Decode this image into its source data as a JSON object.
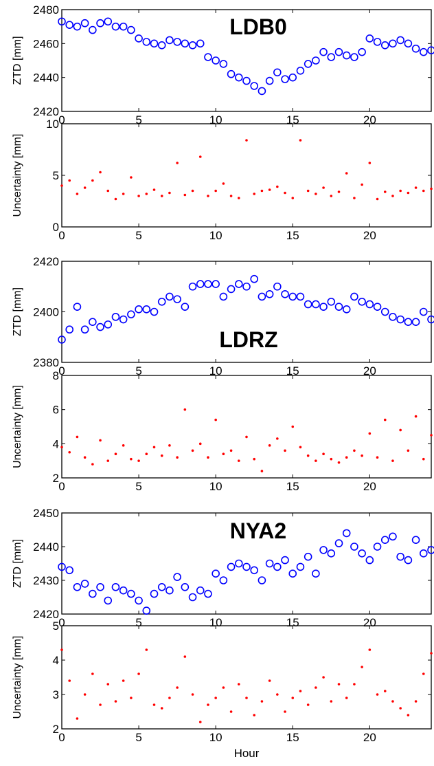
{
  "figure": {
    "xlabel": "Hour"
  },
  "chart_data": [
    {
      "type": "scatter",
      "title": "LDB0",
      "xlabel": "",
      "ylabel": "ZTD [mm]",
      "xlim": [
        0,
        24
      ],
      "ylim": [
        2420,
        2480
      ],
      "xticks": [
        0,
        5,
        10,
        15,
        20
      ],
      "yticks": [
        2420,
        2440,
        2460,
        2480
      ],
      "marker": "circle",
      "color": "#0000ff",
      "x": [
        0,
        0.5,
        1,
        1.5,
        2,
        2.5,
        3,
        3.5,
        4,
        4.5,
        5,
        5.5,
        6,
        6.5,
        7,
        7.5,
        8,
        8.5,
        9,
        9.5,
        10,
        10.5,
        11,
        11.5,
        12,
        12.5,
        13,
        13.5,
        14,
        14.5,
        15,
        15.5,
        16,
        16.5,
        17,
        17.5,
        18,
        18.5,
        19,
        19.5,
        20,
        20.5,
        21,
        21.5,
        22,
        22.5,
        23,
        23.5,
        24
      ],
      "y": [
        2473,
        2471,
        2470,
        2472,
        2468,
        2472,
        2473,
        2470,
        2470,
        2468,
        2463,
        2461,
        2460,
        2459,
        2462,
        2461,
        2460,
        2459,
        2460,
        2452,
        2450,
        2448,
        2442,
        2440,
        2438,
        2435,
        2432,
        2438,
        2443,
        2439,
        2440,
        2444,
        2448,
        2450,
        2455,
        2452,
        2455,
        2453,
        2452,
        2455,
        2463,
        2461,
        2459,
        2460,
        2462,
        2460,
        2457,
        2455,
        2456
      ]
    },
    {
      "type": "scatter",
      "title": "",
      "xlabel": "",
      "ylabel": "Uncertainty [mm]",
      "xlim": [
        0,
        24
      ],
      "ylim": [
        0,
        10
      ],
      "xticks": [
        0,
        5,
        10,
        15,
        20
      ],
      "yticks": [
        0,
        5,
        10
      ],
      "marker": "dot",
      "color": "#ff0000",
      "x": [
        0,
        0.5,
        1,
        1.5,
        2,
        2.5,
        3,
        3.5,
        4,
        4.5,
        5,
        5.5,
        6,
        6.5,
        7,
        7.5,
        8,
        8.5,
        9,
        9.5,
        10,
        10.5,
        11,
        11.5,
        12,
        12.5,
        13,
        13.5,
        14,
        14.5,
        15,
        15.5,
        16,
        16.5,
        17,
        17.5,
        18,
        18.5,
        19,
        19.5,
        20,
        20.5,
        21,
        21.5,
        22,
        22.5,
        23,
        23.5,
        24
      ],
      "y": [
        4.0,
        4.5,
        3.2,
        3.8,
        4.5,
        5.3,
        3.5,
        2.7,
        3.2,
        4.8,
        3.0,
        3.2,
        3.6,
        3.0,
        3.3,
        6.2,
        3.1,
        3.5,
        6.8,
        3.0,
        3.5,
        4.2,
        3.0,
        2.8,
        8.4,
        3.2,
        3.5,
        3.6,
        3.9,
        3.3,
        2.8,
        8.4,
        3.5,
        3.2,
        3.8,
        3.0,
        3.4,
        5.2,
        2.8,
        4.1,
        6.2,
        2.7,
        3.4,
        3.0,
        3.5,
        3.3,
        3.8,
        3.5,
        3.7
      ]
    },
    {
      "type": "scatter",
      "title": "LDRZ",
      "xlabel": "",
      "ylabel": "ZTD [mm]",
      "xlim": [
        0,
        24
      ],
      "ylim": [
        2380,
        2420
      ],
      "xticks": [
        0,
        5,
        10,
        15,
        20
      ],
      "yticks": [
        2380,
        2400,
        2420
      ],
      "marker": "circle",
      "color": "#0000ff",
      "x": [
        0,
        0.5,
        1,
        1.5,
        2,
        2.5,
        3,
        3.5,
        4,
        4.5,
        5,
        5.5,
        6,
        6.5,
        7,
        7.5,
        8,
        8.5,
        9,
        9.5,
        10,
        10.5,
        11,
        11.5,
        12,
        12.5,
        13,
        13.5,
        14,
        14.5,
        15,
        15.5,
        16,
        16.5,
        17,
        17.5,
        18,
        18.5,
        19,
        19.5,
        20,
        20.5,
        21,
        21.5,
        22,
        22.5,
        23,
        23.5,
        24
      ],
      "y": [
        2389,
        2393,
        2402,
        2393,
        2396,
        2394,
        2395,
        2398,
        2397,
        2399,
        2401,
        2401,
        2400,
        2404,
        2406,
        2405,
        2402,
        2410,
        2411,
        2411,
        2411,
        2406,
        2409,
        2411,
        2410,
        2413,
        2406,
        2407,
        2410,
        2407,
        2406,
        2406,
        2403,
        2403,
        2402,
        2404,
        2402,
        2401,
        2406,
        2404,
        2403,
        2402,
        2400,
        2398,
        2397,
        2396,
        2396,
        2400,
        2397
      ]
    },
    {
      "type": "scatter",
      "title": "",
      "xlabel": "",
      "ylabel": "Uncertainty [mm]",
      "xlim": [
        0,
        24
      ],
      "ylim": [
        2,
        8
      ],
      "xticks": [
        0,
        5,
        10,
        15,
        20
      ],
      "yticks": [
        2,
        4,
        6,
        8
      ],
      "marker": "dot",
      "color": "#ff0000",
      "x": [
        0,
        0.5,
        1,
        1.5,
        2,
        2.5,
        3,
        3.5,
        4,
        4.5,
        5,
        5.5,
        6,
        6.5,
        7,
        7.5,
        8,
        8.5,
        9,
        9.5,
        10,
        10.5,
        11,
        11.5,
        12,
        12.5,
        13,
        13.5,
        14,
        14.5,
        15,
        15.5,
        16,
        16.5,
        17,
        17.5,
        18,
        18.5,
        19,
        19.5,
        20,
        20.5,
        21,
        21.5,
        22,
        22.5,
        23,
        23.5,
        24
      ],
      "y": [
        3.8,
        3.5,
        4.4,
        3.2,
        2.8,
        4.2,
        3.0,
        3.4,
        3.9,
        3.1,
        3.0,
        3.4,
        3.8,
        3.3,
        3.9,
        3.2,
        6.0,
        3.6,
        4.0,
        3.2,
        5.4,
        3.4,
        3.6,
        3.0,
        4.4,
        3.1,
        2.4,
        3.9,
        4.3,
        3.6,
        5.0,
        3.8,
        3.3,
        3.0,
        3.4,
        3.1,
        2.9,
        3.2,
        3.6,
        3.3,
        4.6,
        3.2,
        5.4,
        3.0,
        4.8,
        3.6,
        5.6,
        3.1,
        4.5
      ]
    },
    {
      "type": "scatter",
      "title": "NYA2",
      "xlabel": "",
      "ylabel": "ZTD [mm]",
      "xlim": [
        0,
        24
      ],
      "ylim": [
        2420,
        2450
      ],
      "xticks": [
        0,
        5,
        10,
        15,
        20
      ],
      "yticks": [
        2420,
        2430,
        2440,
        2450
      ],
      "marker": "circle",
      "color": "#0000ff",
      "x": [
        0,
        0.5,
        1,
        1.5,
        2,
        2.5,
        3,
        3.5,
        4,
        4.5,
        5,
        5.5,
        6,
        6.5,
        7,
        7.5,
        8,
        8.5,
        9,
        9.5,
        10,
        10.5,
        11,
        11.5,
        12,
        12.5,
        13,
        13.5,
        14,
        14.5,
        15,
        15.5,
        16,
        16.5,
        17,
        17.5,
        18,
        18.5,
        19,
        19.5,
        20,
        20.5,
        21,
        21.5,
        22,
        22.5,
        23,
        23.5,
        24
      ],
      "y": [
        2434,
        2433,
        2428,
        2429,
        2426,
        2428,
        2424,
        2428,
        2427,
        2426,
        2424,
        2421,
        2426,
        2428,
        2427,
        2431,
        2428,
        2425,
        2427,
        2426,
        2432,
        2430,
        2434,
        2435,
        2434,
        2433,
        2430,
        2435,
        2434,
        2436,
        2432,
        2434,
        2437,
        2432,
        2439,
        2438,
        2441,
        2444,
        2440,
        2438,
        2436,
        2440,
        2442,
        2443,
        2437,
        2436,
        2442,
        2438,
        2439
      ]
    },
    {
      "type": "scatter",
      "title": "",
      "xlabel": "Hour",
      "ylabel": "Uncertainty [mm]",
      "xlim": [
        0,
        24
      ],
      "ylim": [
        2,
        5
      ],
      "xticks": [
        0,
        5,
        10,
        15,
        20
      ],
      "yticks": [
        2,
        3,
        4,
        5
      ],
      "marker": "dot",
      "color": "#ff0000",
      "x": [
        0,
        0.5,
        1,
        1.5,
        2,
        2.5,
        3,
        3.5,
        4,
        4.5,
        5,
        5.5,
        6,
        6.5,
        7,
        7.5,
        8,
        8.5,
        9,
        9.5,
        10,
        10.5,
        11,
        11.5,
        12,
        12.5,
        13,
        13.5,
        14,
        14.5,
        15,
        15.5,
        16,
        16.5,
        17,
        17.5,
        18,
        18.5,
        19,
        19.5,
        20,
        20.5,
        21,
        21.5,
        22,
        22.5,
        23,
        23.5,
        24
      ],
      "y": [
        4.3,
        3.4,
        2.3,
        3.0,
        3.6,
        2.7,
        3.3,
        2.8,
        3.4,
        2.9,
        3.6,
        4.3,
        2.7,
        2.6,
        2.9,
        3.2,
        4.1,
        3.0,
        2.2,
        2.7,
        2.9,
        3.2,
        2.5,
        3.3,
        2.9,
        2.4,
        2.8,
        3.4,
        3.0,
        2.5,
        2.9,
        3.1,
        2.7,
        3.2,
        3.5,
        2.8,
        3.3,
        2.9,
        3.3,
        3.8,
        4.3,
        3.0,
        3.1,
        2.8,
        2.6,
        2.4,
        2.8,
        3.6,
        4.2
      ]
    }
  ]
}
